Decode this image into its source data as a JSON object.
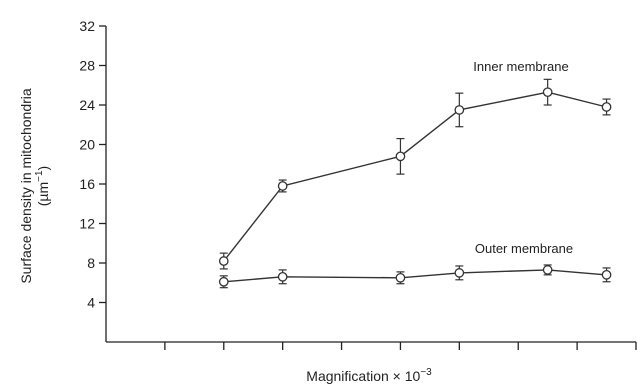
{
  "chart_data": {
    "type": "line",
    "xlabel": "Magnification × 10",
    "xlabel_exponent": "−3",
    "ylabel": "Surface density in mitochondria",
    "ylabel_unit": "(µm",
    "ylabel_unit_exponent": "−1",
    "ylabel_unit_close": ")",
    "ylim": [
      0,
      32
    ],
    "yticks": [
      4,
      8,
      12,
      16,
      20,
      24,
      28,
      32
    ],
    "ytick_labels": [
      "4",
      "8",
      "12",
      "16",
      "20",
      "24",
      "28",
      "32"
    ],
    "xlim": [
      0,
      18
    ],
    "xticks": [
      2,
      4,
      6,
      8,
      10,
      12,
      14,
      16,
      18
    ],
    "x_tick_labels_shown": false,
    "series": [
      {
        "name": "Inner membrane",
        "x": [
          4,
          6,
          10,
          12,
          15,
          17
        ],
        "y": [
          8.2,
          15.8,
          18.8,
          23.5,
          25.3,
          23.8
        ],
        "err": [
          0.8,
          0.6,
          1.8,
          1.7,
          1.3,
          0.8
        ]
      },
      {
        "name": "Outer membrane",
        "x": [
          4,
          6,
          10,
          12,
          15,
          17
        ],
        "y": [
          6.1,
          6.6,
          6.5,
          7.0,
          7.3,
          6.8
        ],
        "err": [
          0.6,
          0.7,
          0.6,
          0.7,
          0.5,
          0.7
        ]
      }
    ]
  }
}
